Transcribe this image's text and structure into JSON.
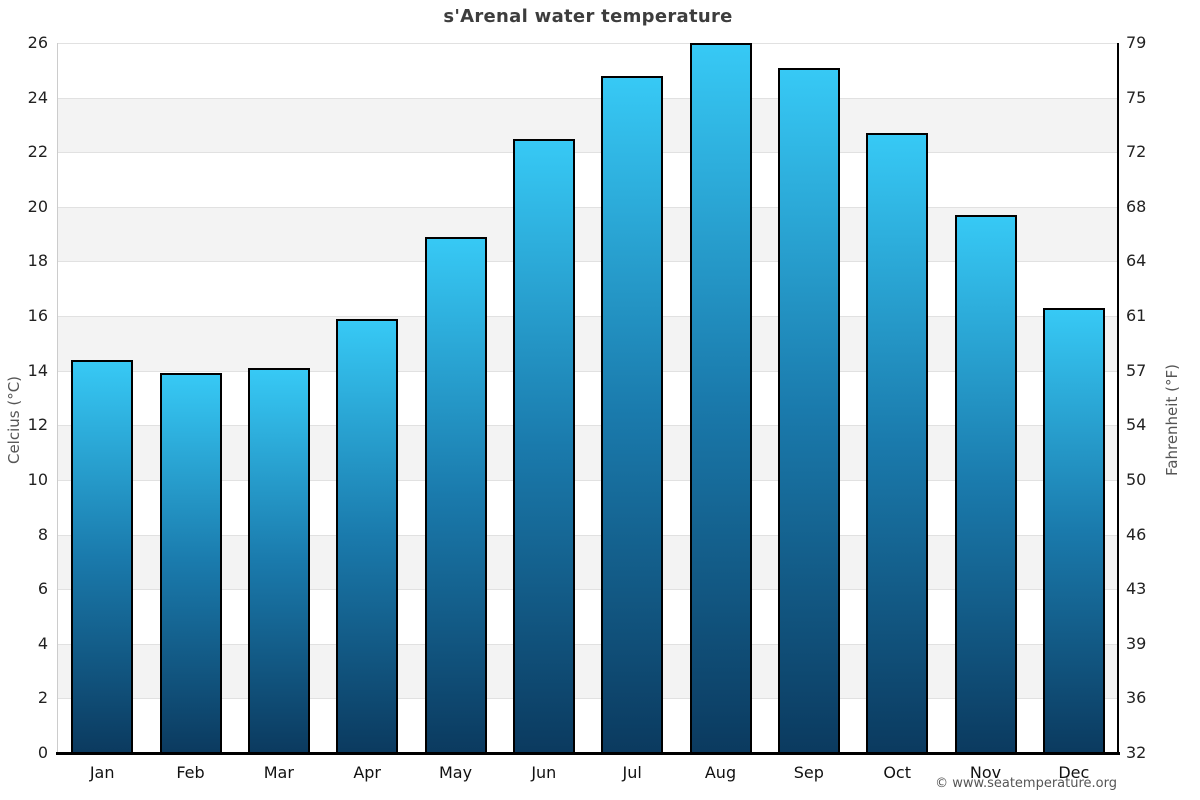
{
  "title": "s'Arenal water temperature",
  "footer": {
    "copyright": "© www.seatemperature.org"
  },
  "chart_data": {
    "type": "bar",
    "title": "s'Arenal water temperature",
    "series_name": "Water temperature",
    "categories": [
      "Jan",
      "Feb",
      "Mar",
      "Apr",
      "May",
      "Jun",
      "Jul",
      "Aug",
      "Sep",
      "Oct",
      "Nov",
      "Dec"
    ],
    "values": [
      14.4,
      13.9,
      14.1,
      15.9,
      18.9,
      22.5,
      24.8,
      26.0,
      25.1,
      22.7,
      19.7,
      16.3
    ],
    "xlabel": "",
    "ylabel_left": "Celcius (°C)",
    "ylabel_right": "Fahrenheit (°F)",
    "ylim": [
      0,
      26
    ],
    "yticks_celsius": [
      0,
      2,
      4,
      6,
      8,
      10,
      12,
      14,
      16,
      18,
      20,
      22,
      24,
      26
    ],
    "yticks_fahrenheit": [
      32,
      36,
      39,
      43,
      46,
      50,
      54,
      57,
      61,
      64,
      68,
      72,
      75,
      79
    ],
    "grid": "horizontal zebra bands every 2°C",
    "legend": "none",
    "colors": {
      "bar_gradient_top": "#37c9f5",
      "bar_gradient_mid": "#1a7aac",
      "bar_gradient_bottom": "#0b3a5f",
      "bar_border": "#000000",
      "band_light": "#ffffff",
      "band_dark": "#f3f3f3",
      "gridline": "#e1e1e1",
      "left_axis": "#cccccc",
      "right_axis": "#000000",
      "bottom_axis": "#000000",
      "title_text": "#3d3d3d",
      "tick_text": "#222222",
      "axis_label_text": "#555555",
      "footer_text": "#555555"
    }
  }
}
